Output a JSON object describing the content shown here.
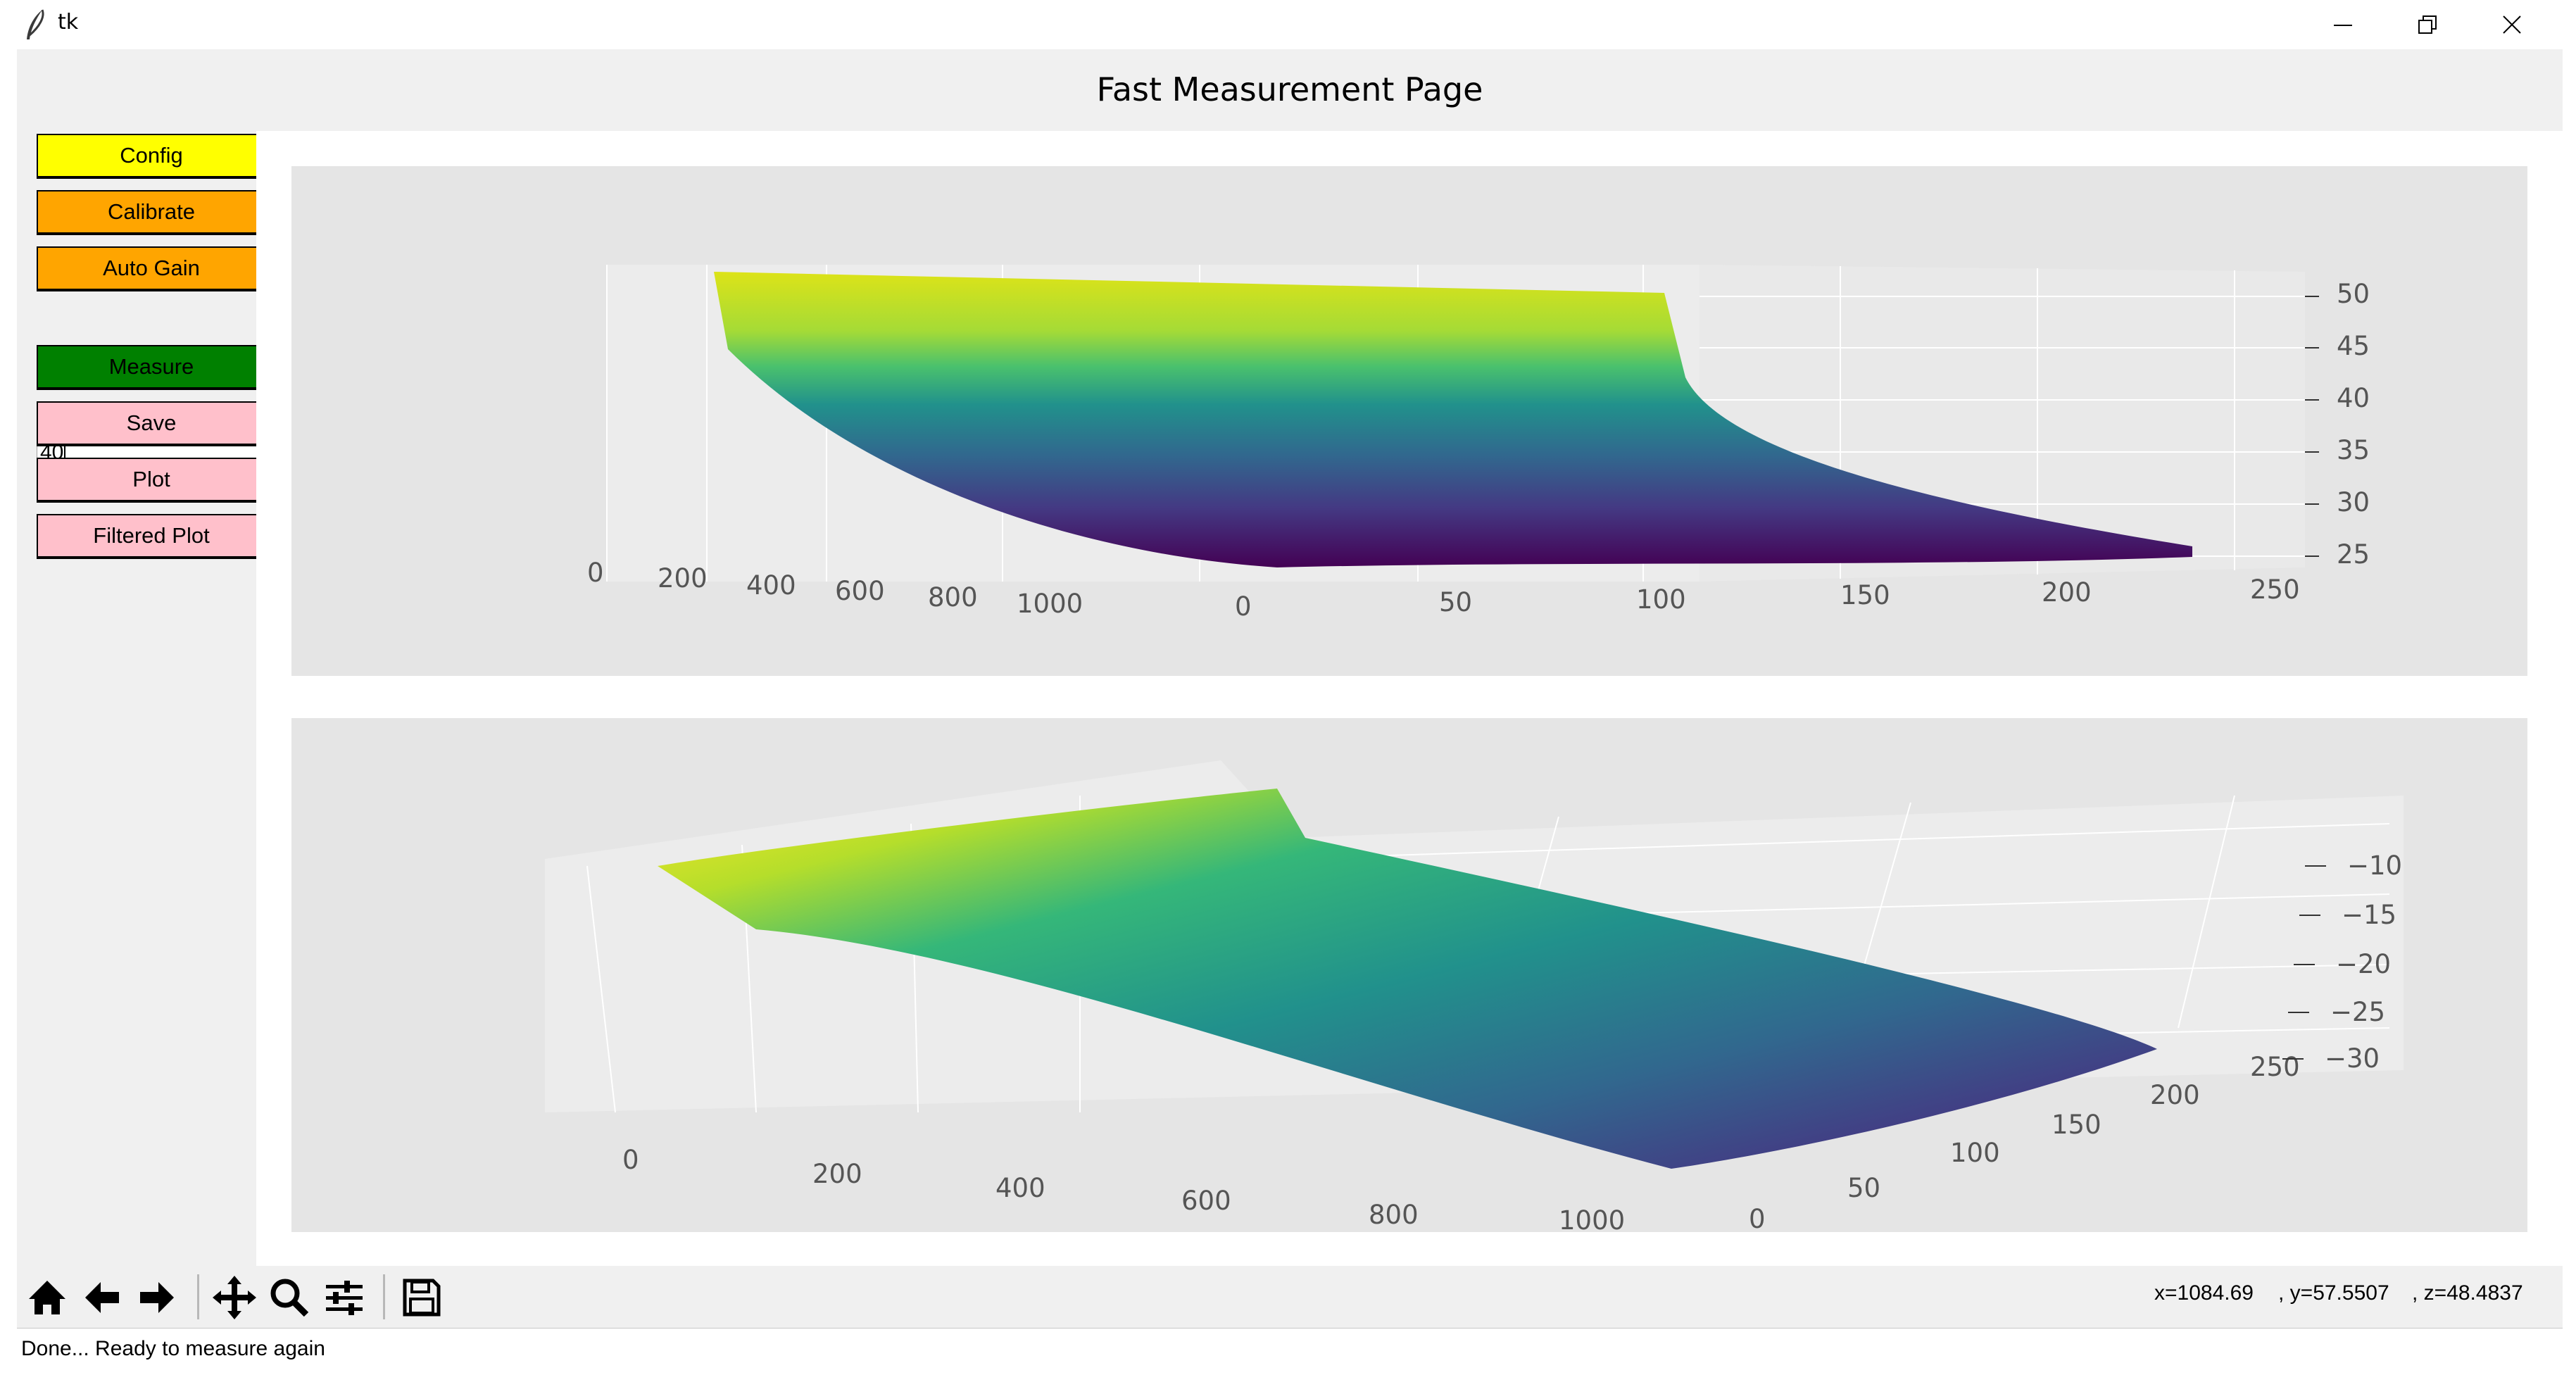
{
  "window": {
    "title": "tk",
    "icons": {
      "app": "feather-icon",
      "minimize": "minimize-icon",
      "restore": "restore-icon",
      "close": "close-icon"
    }
  },
  "page": {
    "heading": "Fast Measurement Page"
  },
  "controls": {
    "buttons": [
      {
        "label": "Config",
        "color": "#ffff00"
      },
      {
        "label": "Calibrate",
        "color": "#ffa500"
      },
      {
        "label": "Auto Gain",
        "color": "#ffa500"
      },
      {
        "label": "Measure",
        "color": "#008000"
      },
      {
        "label": "Save",
        "color": "#ffc0cb"
      },
      {
        "label": "Plot",
        "color": "#ffc0cb"
      },
      {
        "label": "Filtered Plot",
        "color": "#ffc0cb"
      }
    ],
    "gain_input": {
      "value": "40"
    }
  },
  "toolbar": {
    "icons": [
      "home-icon",
      "back-arrow-icon",
      "forward-arrow-icon",
      "pan-icon",
      "zoom-icon",
      "configure-subplots-icon",
      "save-figure-icon"
    ],
    "coords": {
      "x": "x=1084.69",
      "y": ", y=57.5507",
      "z": ", z=48.4837"
    }
  },
  "status": {
    "text": "Done... Ready to measure again"
  },
  "chart_data": [
    {
      "type": "surface",
      "colormap": "viridis",
      "x_ticks": [
        "0",
        "200",
        "400",
        "600",
        "800",
        "1000"
      ],
      "y_ticks": [
        "0",
        "50",
        "100",
        "150",
        "200",
        "250"
      ],
      "z_ticks": [
        "25",
        "30",
        "35",
        "40",
        "45",
        "50"
      ],
      "xlim": [
        0,
        1024
      ],
      "ylim": [
        0,
        256
      ],
      "zlim": [
        25,
        52
      ],
      "grid": true
    },
    {
      "type": "surface",
      "colormap": "viridis",
      "x_ticks": [
        "0",
        "200",
        "400",
        "600",
        "800",
        "1000"
      ],
      "y_ticks": [
        "0",
        "50",
        "100",
        "150",
        "200",
        "250"
      ],
      "z_ticks": [
        "−10",
        "−15",
        "−20",
        "−25",
        "−30"
      ],
      "xlim": [
        0,
        1024
      ],
      "ylim": [
        0,
        256
      ],
      "zlim": [
        -31,
        -8
      ],
      "grid": true
    }
  ]
}
